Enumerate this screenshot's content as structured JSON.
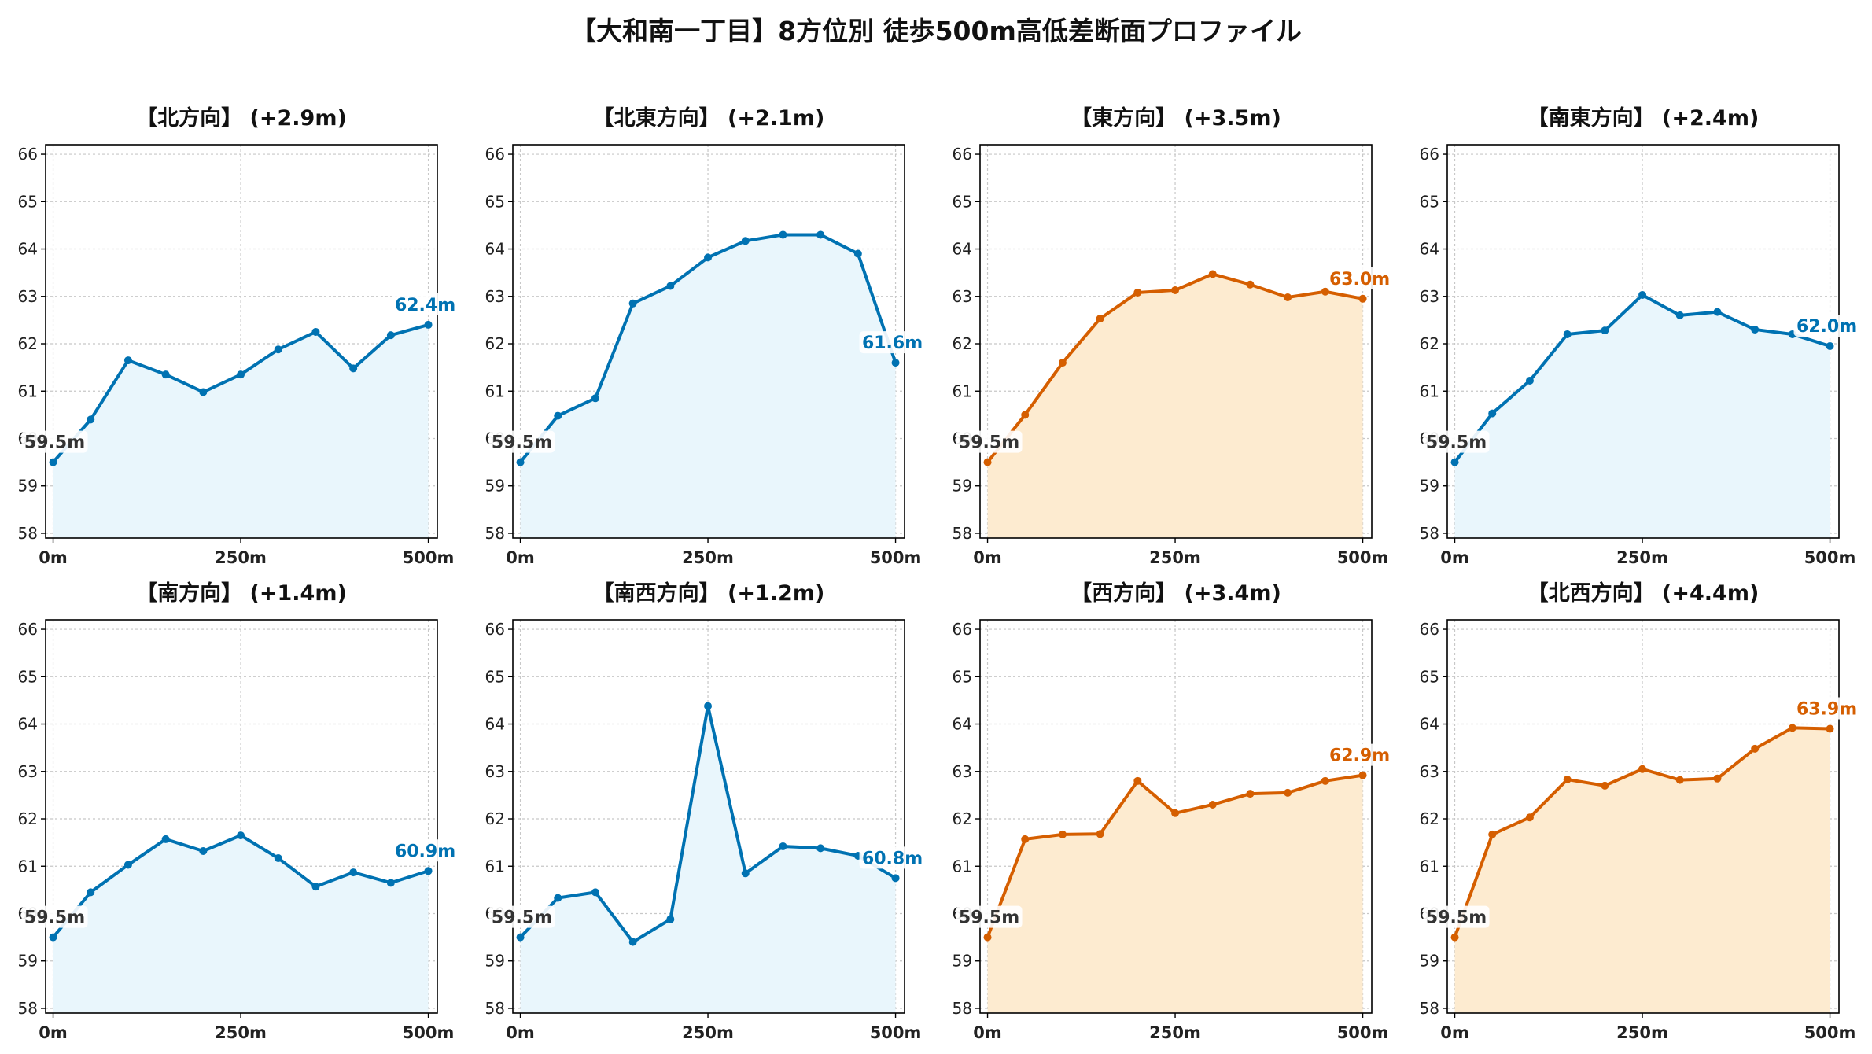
{
  "title": "【大和南一丁目】8方位別 徒歩500m高低差断面プロファイル",
  "colors": {
    "up_line": "#0072b2",
    "up_fill": "#e9f6fc",
    "high_line": "#d55e00",
    "high_fill": "#fdebd0",
    "start_label": "#333333",
    "grid": "#c8c8c8",
    "axis": "#000000"
  },
  "chart_data": [
    {
      "type": "area",
      "title": "【北方向】 (+2.9m)",
      "style": "blue",
      "x": [
        0,
        50,
        100,
        150,
        200,
        250,
        300,
        350,
        400,
        450,
        500
      ],
      "y": [
        59.5,
        60.4,
        61.65,
        61.35,
        60.98,
        61.35,
        61.88,
        62.25,
        61.48,
        62.18,
        62.4
      ],
      "start_label": "59.5m",
      "end_label": "62.4m",
      "xticks": [
        "0m",
        "250m",
        "500m"
      ],
      "xtick_values": [
        0,
        250,
        500
      ],
      "yticks": [
        58,
        59,
        60,
        61,
        62,
        63,
        64,
        65,
        66
      ],
      "ylim": [
        57.9,
        66.2
      ],
      "xlim": [
        -10,
        512
      ],
      "grid": true
    },
    {
      "type": "area",
      "title": "【北東方向】 (+2.1m)",
      "style": "blue",
      "x": [
        0,
        50,
        100,
        150,
        200,
        250,
        300,
        350,
        400,
        450,
        500
      ],
      "y": [
        59.5,
        60.48,
        60.85,
        62.85,
        63.22,
        63.82,
        64.17,
        64.3,
        64.3,
        63.9,
        61.6
      ],
      "start_label": "59.5m",
      "end_label": "61.6m",
      "xticks": [
        "0m",
        "250m",
        "500m"
      ],
      "xtick_values": [
        0,
        250,
        500
      ],
      "yticks": [
        58,
        59,
        60,
        61,
        62,
        63,
        64,
        65,
        66
      ],
      "ylim": [
        57.9,
        66.2
      ],
      "xlim": [
        -10,
        512
      ],
      "grid": true
    },
    {
      "type": "area",
      "title": "【東方向】 (+3.5m)",
      "style": "orange",
      "x": [
        0,
        50,
        100,
        150,
        200,
        250,
        300,
        350,
        400,
        450,
        500
      ],
      "y": [
        59.5,
        60.5,
        61.6,
        62.53,
        63.08,
        63.13,
        63.47,
        63.25,
        62.98,
        63.1,
        62.95
      ],
      "start_label": "59.5m",
      "end_label": "63.0m",
      "xticks": [
        "0m",
        "250m",
        "500m"
      ],
      "xtick_values": [
        0,
        250,
        500
      ],
      "yticks": [
        58,
        59,
        60,
        61,
        62,
        63,
        64,
        65,
        66
      ],
      "ylim": [
        57.9,
        66.2
      ],
      "xlim": [
        -10,
        512
      ],
      "grid": true
    },
    {
      "type": "area",
      "title": "【南東方向】 (+2.4m)",
      "style": "blue",
      "x": [
        0,
        50,
        100,
        150,
        200,
        250,
        300,
        350,
        400,
        450,
        500
      ],
      "y": [
        59.5,
        60.53,
        61.22,
        62.2,
        62.28,
        63.03,
        62.6,
        62.67,
        62.3,
        62.2,
        61.95
      ],
      "start_label": "59.5m",
      "end_label": "62.0m",
      "xticks": [
        "0m",
        "250m",
        "500m"
      ],
      "xtick_values": [
        0,
        250,
        500
      ],
      "yticks": [
        58,
        59,
        60,
        61,
        62,
        63,
        64,
        65,
        66
      ],
      "ylim": [
        57.9,
        66.2
      ],
      "xlim": [
        -10,
        512
      ],
      "grid": true
    },
    {
      "type": "area",
      "title": "【南方向】 (+1.4m)",
      "style": "blue",
      "x": [
        0,
        50,
        100,
        150,
        200,
        250,
        300,
        350,
        400,
        450,
        500
      ],
      "y": [
        59.5,
        60.45,
        61.03,
        61.57,
        61.32,
        61.65,
        61.17,
        60.57,
        60.87,
        60.65,
        60.9
      ],
      "start_label": "59.5m",
      "end_label": "60.9m",
      "xticks": [
        "0m",
        "250m",
        "500m"
      ],
      "xtick_values": [
        0,
        250,
        500
      ],
      "yticks": [
        58,
        59,
        60,
        61,
        62,
        63,
        64,
        65,
        66
      ],
      "ylim": [
        57.9,
        66.2
      ],
      "xlim": [
        -10,
        512
      ],
      "grid": true
    },
    {
      "type": "area",
      "title": "【南西方向】 (+1.2m)",
      "style": "blue",
      "x": [
        0,
        50,
        100,
        150,
        200,
        250,
        300,
        350,
        400,
        450,
        500
      ],
      "y": [
        59.5,
        60.33,
        60.45,
        59.4,
        59.88,
        64.38,
        60.85,
        61.42,
        61.38,
        61.22,
        60.75
      ],
      "start_label": "59.5m",
      "end_label": "60.8m",
      "xticks": [
        "0m",
        "250m",
        "500m"
      ],
      "xtick_values": [
        0,
        250,
        500
      ],
      "yticks": [
        58,
        59,
        60,
        61,
        62,
        63,
        64,
        65,
        66
      ],
      "ylim": [
        57.9,
        66.2
      ],
      "xlim": [
        -10,
        512
      ],
      "grid": true
    },
    {
      "type": "area",
      "title": "【西方向】 (+3.4m)",
      "style": "orange",
      "x": [
        0,
        50,
        100,
        150,
        200,
        250,
        300,
        350,
        400,
        450,
        500
      ],
      "y": [
        59.5,
        61.57,
        61.67,
        61.68,
        62.8,
        62.12,
        62.3,
        62.53,
        62.55,
        62.8,
        62.92
      ],
      "start_label": "59.5m",
      "end_label": "62.9m",
      "xticks": [
        "0m",
        "250m",
        "500m"
      ],
      "xtick_values": [
        0,
        250,
        500
      ],
      "yticks": [
        58,
        59,
        60,
        61,
        62,
        63,
        64,
        65,
        66
      ],
      "ylim": [
        57.9,
        66.2
      ],
      "xlim": [
        -10,
        512
      ],
      "grid": true
    },
    {
      "type": "area",
      "title": "【北西方向】 (+4.4m)",
      "style": "orange",
      "x": [
        0,
        50,
        100,
        150,
        200,
        250,
        300,
        350,
        400,
        450,
        500
      ],
      "y": [
        59.5,
        61.67,
        62.03,
        62.83,
        62.7,
        63.05,
        62.82,
        62.85,
        63.48,
        63.92,
        63.9
      ],
      "start_label": "59.5m",
      "end_label": "63.9m",
      "xticks": [
        "0m",
        "250m",
        "500m"
      ],
      "xtick_values": [
        0,
        250,
        500
      ],
      "yticks": [
        58,
        59,
        60,
        61,
        62,
        63,
        64,
        65,
        66
      ],
      "ylim": [
        57.9,
        66.2
      ],
      "xlim": [
        -10,
        512
      ],
      "grid": true
    }
  ]
}
